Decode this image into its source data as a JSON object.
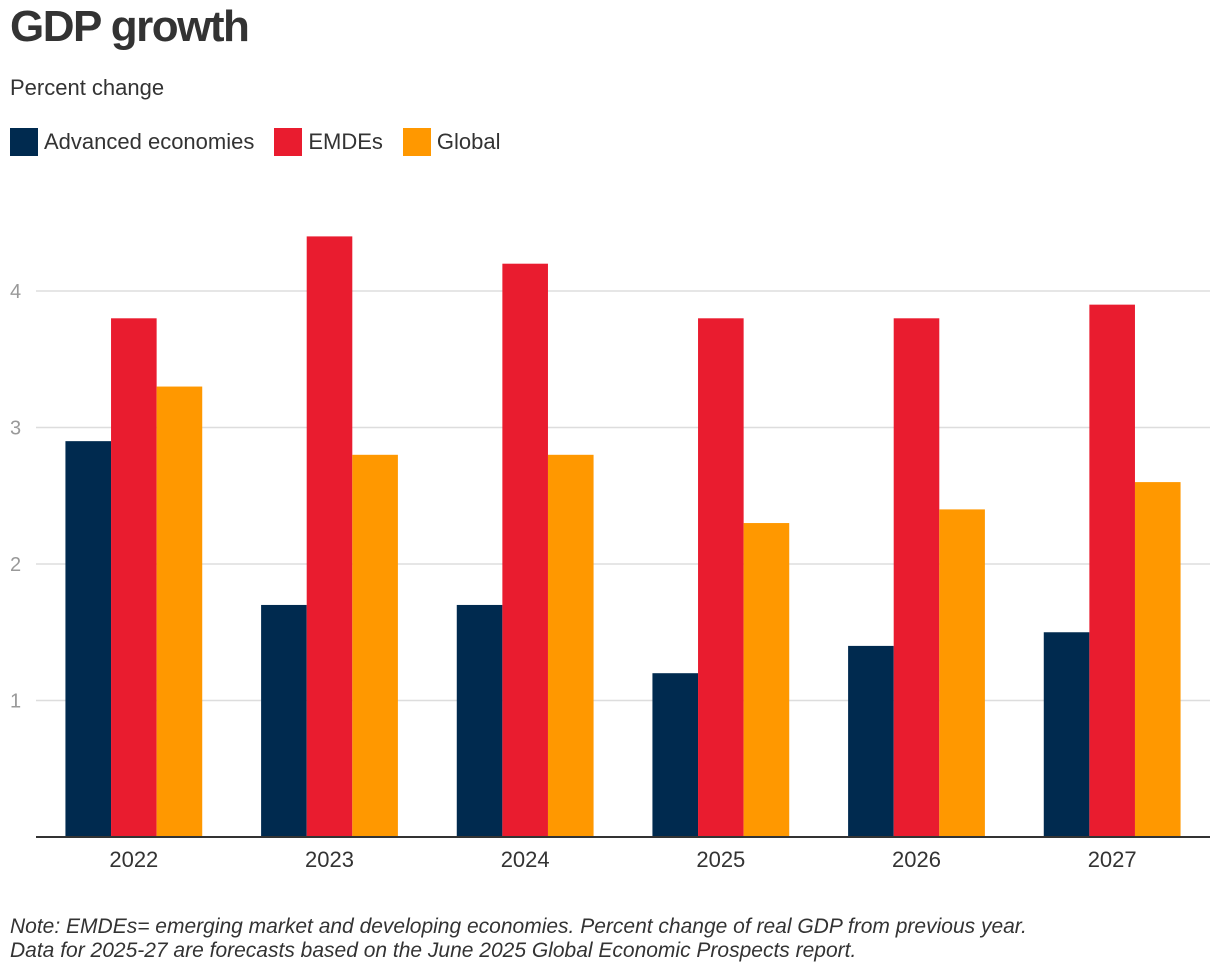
{
  "title": "GDP growth",
  "subtitle": "Percent change",
  "note": {
    "line1": "Note: EMDEs= emerging market and developing economies. Percent change of real GDP from previous year.",
    "line2": "Data for 2025-27 are forecasts based on the June 2025 Global Economic Prospects report."
  },
  "chart_data": {
    "type": "bar",
    "categories": [
      "2022",
      "2023",
      "2024",
      "2025",
      "2026",
      "2027"
    ],
    "series": [
      {
        "name": "Advanced economies",
        "color": "#002a4f",
        "values": [
          2.9,
          1.7,
          1.7,
          1.2,
          1.4,
          1.5
        ]
      },
      {
        "name": "EMDEs",
        "color": "#e91c2f",
        "values": [
          3.8,
          4.4,
          4.2,
          3.8,
          3.8,
          3.9
        ]
      },
      {
        "name": "Global",
        "color": "#ff9800",
        "values": [
          3.3,
          2.8,
          2.8,
          2.3,
          2.4,
          2.6
        ]
      }
    ],
    "y_ticks": [
      "1",
      "2",
      "3",
      "4"
    ],
    "ylim": [
      0,
      4.4
    ],
    "grid": true,
    "legend_position": "top-left"
  }
}
